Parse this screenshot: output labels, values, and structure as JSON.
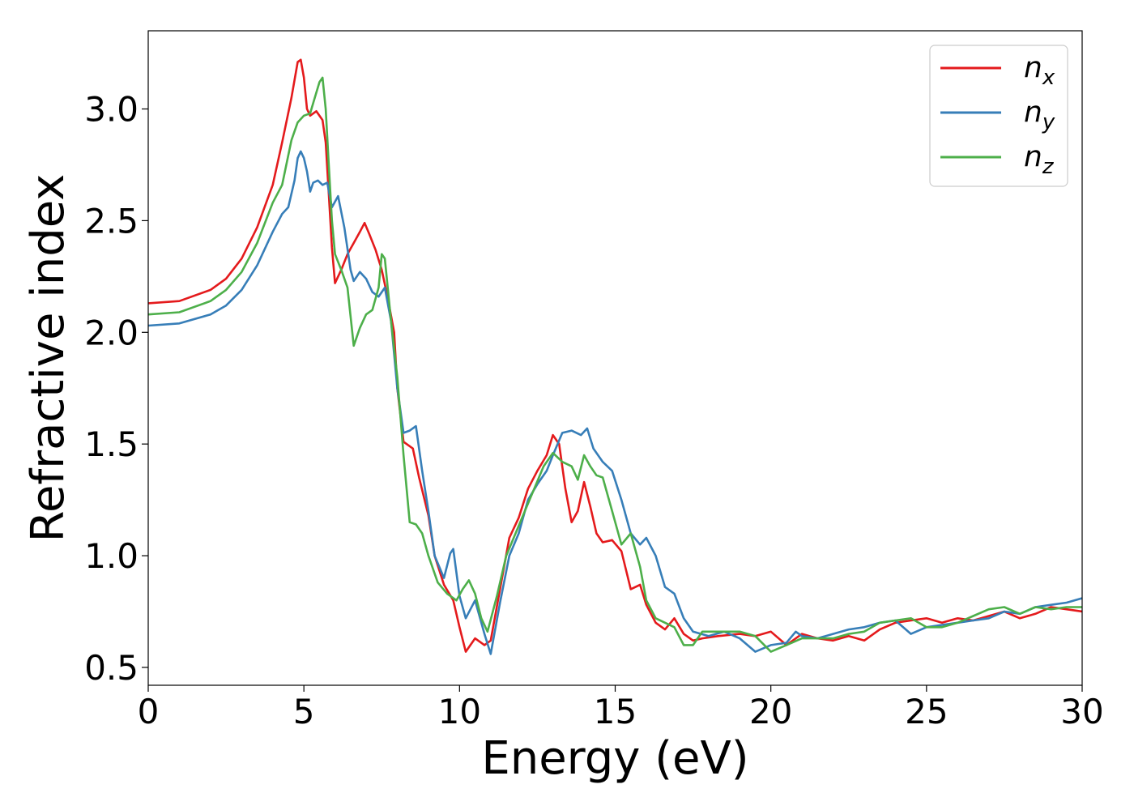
{
  "chart_data": {
    "type": "line",
    "title": "",
    "xlabel": "Energy (eV)",
    "ylabel": "Refractive index",
    "xlim": [
      0,
      30
    ],
    "ylim": [
      0.42,
      3.35
    ],
    "xticks": [
      0,
      5,
      10,
      15,
      20,
      25,
      30
    ],
    "xtick_labels": [
      "0",
      "5",
      "10",
      "15",
      "20",
      "25",
      "30"
    ],
    "yticks": [
      0.5,
      1.0,
      1.5,
      2.0,
      2.5,
      3.0
    ],
    "ytick_labels": [
      "0.5",
      "1.0",
      "1.5",
      "2.0",
      "2.5",
      "3.0"
    ],
    "grid": false,
    "legend_position": "top-right",
    "series": [
      {
        "name": "n",
        "subscript": "x",
        "color": "#e41a1c",
        "x": [
          0,
          1,
          2,
          2.5,
          3,
          3.5,
          4,
          4.3,
          4.6,
          4.8,
          4.9,
          5.0,
          5.1,
          5.2,
          5.4,
          5.6,
          5.7,
          5.8,
          5.9,
          6.0,
          6.2,
          6.4,
          6.6,
          6.8,
          6.95,
          7.1,
          7.3,
          7.5,
          7.7,
          7.9,
          8.0,
          8.2,
          8.5,
          8.7,
          9.0,
          9.2,
          9.5,
          9.8,
          10.0,
          10.2,
          10.5,
          10.8,
          11.0,
          11.3,
          11.6,
          11.9,
          12.2,
          12.5,
          12.8,
          13.0,
          13.2,
          13.4,
          13.6,
          13.8,
          14.0,
          14.2,
          14.4,
          14.6,
          14.9,
          15.2,
          15.5,
          15.8,
          16.0,
          16.3,
          16.6,
          16.9,
          17.2,
          17.5,
          17.8,
          18.3,
          19.0,
          19.5,
          20.0,
          20.5,
          21.0,
          21.5,
          22.0,
          22.5,
          23.0,
          23.5,
          24.0,
          24.5,
          25.0,
          25.5,
          26.0,
          26.5,
          27.0,
          27.5,
          28.0,
          28.5,
          29.0,
          29.5,
          30.0
        ],
        "y": [
          2.13,
          2.14,
          2.19,
          2.24,
          2.33,
          2.47,
          2.66,
          2.85,
          3.05,
          3.21,
          3.22,
          3.14,
          3.0,
          2.97,
          2.99,
          2.95,
          2.85,
          2.62,
          2.38,
          2.22,
          2.28,
          2.35,
          2.4,
          2.45,
          2.49,
          2.44,
          2.37,
          2.28,
          2.15,
          2.0,
          1.75,
          1.51,
          1.48,
          1.35,
          1.18,
          1.0,
          0.87,
          0.8,
          0.68,
          0.57,
          0.63,
          0.6,
          0.62,
          0.85,
          1.08,
          1.17,
          1.3,
          1.38,
          1.45,
          1.54,
          1.5,
          1.3,
          1.15,
          1.2,
          1.33,
          1.22,
          1.1,
          1.06,
          1.07,
          1.02,
          0.85,
          0.87,
          0.78,
          0.7,
          0.67,
          0.72,
          0.65,
          0.62,
          0.63,
          0.64,
          0.65,
          0.64,
          0.66,
          0.6,
          0.65,
          0.63,
          0.62,
          0.64,
          0.62,
          0.67,
          0.7,
          0.71,
          0.72,
          0.7,
          0.72,
          0.71,
          0.73,
          0.75,
          0.72,
          0.74,
          0.77,
          0.76,
          0.75
        ]
      },
      {
        "name": "n",
        "subscript": "y",
        "color": "#377eb8",
        "x": [
          0,
          1,
          2,
          2.5,
          3,
          3.5,
          4,
          4.3,
          4.5,
          4.7,
          4.8,
          4.9,
          5.0,
          5.1,
          5.2,
          5.3,
          5.45,
          5.6,
          5.75,
          5.9,
          6.1,
          6.3,
          6.5,
          6.6,
          6.8,
          7.0,
          7.2,
          7.4,
          7.6,
          7.8,
          8.0,
          8.2,
          8.4,
          8.6,
          8.8,
          9.0,
          9.2,
          9.5,
          9.7,
          9.8,
          10.0,
          10.2,
          10.5,
          10.8,
          11.0,
          11.3,
          11.6,
          11.9,
          12.2,
          12.5,
          12.8,
          13.0,
          13.3,
          13.6,
          13.9,
          14.1,
          14.3,
          14.6,
          14.9,
          15.2,
          15.5,
          15.8,
          16.0,
          16.3,
          16.6,
          16.9,
          17.2,
          17.5,
          18.0,
          18.5,
          19.0,
          19.5,
          20.0,
          20.5,
          20.8,
          21.0,
          21.5,
          22.0,
          22.5,
          23.0,
          23.5,
          24.0,
          24.5,
          25.0,
          25.5,
          26.0,
          26.5,
          27.0,
          27.5,
          28.0,
          28.5,
          29.0,
          29.5,
          30.0
        ],
        "y": [
          2.03,
          2.04,
          2.08,
          2.12,
          2.19,
          2.3,
          2.45,
          2.53,
          2.56,
          2.68,
          2.78,
          2.81,
          2.78,
          2.72,
          2.63,
          2.67,
          2.68,
          2.66,
          2.67,
          2.56,
          2.61,
          2.47,
          2.28,
          2.23,
          2.27,
          2.24,
          2.18,
          2.16,
          2.2,
          2.05,
          1.75,
          1.55,
          1.56,
          1.58,
          1.38,
          1.2,
          1.0,
          0.9,
          1.01,
          1.03,
          0.82,
          0.72,
          0.8,
          0.65,
          0.56,
          0.79,
          1.0,
          1.1,
          1.25,
          1.32,
          1.38,
          1.45,
          1.55,
          1.56,
          1.54,
          1.57,
          1.48,
          1.42,
          1.38,
          1.25,
          1.1,
          1.05,
          1.08,
          1.0,
          0.86,
          0.83,
          0.72,
          0.66,
          0.64,
          0.66,
          0.63,
          0.57,
          0.6,
          0.61,
          0.66,
          0.64,
          0.63,
          0.65,
          0.67,
          0.68,
          0.7,
          0.71,
          0.65,
          0.68,
          0.69,
          0.7,
          0.71,
          0.72,
          0.75,
          0.74,
          0.77,
          0.78,
          0.79,
          0.81
        ]
      },
      {
        "name": "n",
        "subscript": "z",
        "color": "#4daf4a",
        "x": [
          0,
          1,
          2,
          2.5,
          3,
          3.5,
          4,
          4.3,
          4.6,
          4.8,
          5.0,
          5.2,
          5.35,
          5.5,
          5.6,
          5.7,
          5.8,
          5.9,
          6.0,
          6.2,
          6.4,
          6.6,
          6.8,
          7.0,
          7.2,
          7.4,
          7.5,
          7.6,
          7.8,
          8.0,
          8.2,
          8.4,
          8.6,
          8.8,
          9.0,
          9.3,
          9.6,
          9.9,
          10.1,
          10.3,
          10.5,
          10.7,
          10.9,
          11.2,
          11.5,
          11.8,
          12.1,
          12.4,
          12.7,
          13.0,
          13.3,
          13.6,
          13.8,
          14.0,
          14.2,
          14.4,
          14.6,
          14.9,
          15.2,
          15.5,
          15.8,
          16.0,
          16.3,
          16.6,
          16.9,
          17.2,
          17.5,
          17.8,
          18.3,
          19.0,
          19.5,
          20.0,
          20.5,
          21.0,
          21.5,
          22.0,
          22.5,
          23.0,
          23.5,
          24.0,
          24.5,
          25.0,
          25.5,
          26.0,
          26.5,
          27.0,
          27.5,
          28.0,
          28.5,
          29.0,
          29.5,
          30.0
        ],
        "y": [
          2.08,
          2.09,
          2.14,
          2.19,
          2.27,
          2.4,
          2.58,
          2.66,
          2.86,
          2.94,
          2.97,
          2.98,
          3.05,
          3.12,
          3.14,
          3.0,
          2.75,
          2.5,
          2.35,
          2.28,
          2.2,
          1.94,
          2.02,
          2.08,
          2.1,
          2.2,
          2.35,
          2.33,
          2.05,
          1.8,
          1.45,
          1.15,
          1.14,
          1.1,
          1.0,
          0.88,
          0.83,
          0.8,
          0.85,
          0.89,
          0.83,
          0.72,
          0.66,
          0.82,
          1.0,
          1.1,
          1.2,
          1.3,
          1.4,
          1.46,
          1.42,
          1.4,
          1.34,
          1.45,
          1.4,
          1.36,
          1.35,
          1.2,
          1.05,
          1.1,
          0.95,
          0.8,
          0.72,
          0.7,
          0.68,
          0.6,
          0.6,
          0.66,
          0.66,
          0.66,
          0.64,
          0.57,
          0.6,
          0.63,
          0.63,
          0.63,
          0.65,
          0.66,
          0.7,
          0.71,
          0.72,
          0.68,
          0.68,
          0.7,
          0.73,
          0.76,
          0.77,
          0.74,
          0.77,
          0.76,
          0.77,
          0.77
        ]
      }
    ]
  }
}
